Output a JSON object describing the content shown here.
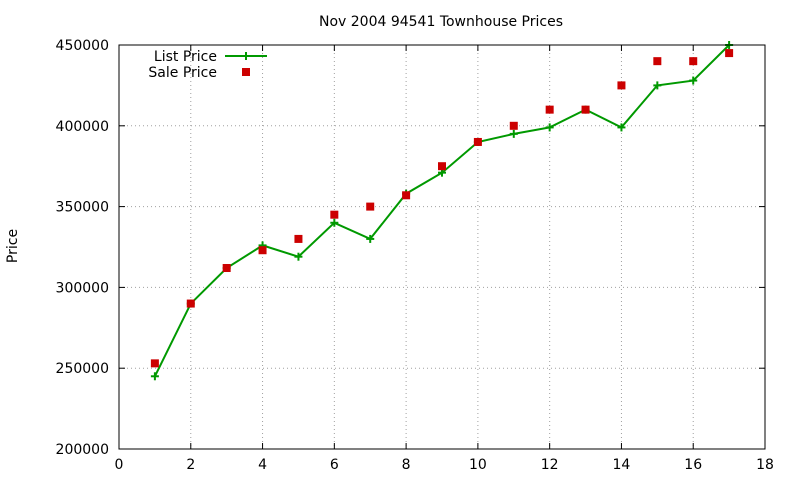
{
  "chart_data": {
    "type": "line",
    "title": "Nov 2004 94541 Townhouse Prices",
    "xlabel": "",
    "ylabel": "Price",
    "xlim": [
      0,
      18
    ],
    "ylim": [
      200000,
      450000
    ],
    "xticks": [
      0,
      2,
      4,
      6,
      8,
      10,
      12,
      14,
      16,
      18
    ],
    "yticks": [
      200000,
      250000,
      300000,
      350000,
      400000,
      450000
    ],
    "grid": true,
    "legend_position": "top-left",
    "series": [
      {
        "name": "List Price",
        "style": "lines+points",
        "marker": "plus",
        "color": "#009900",
        "points": [
          [
            1,
            245000
          ],
          [
            2,
            290000
          ],
          [
            3,
            312000
          ],
          [
            4,
            326000
          ],
          [
            5,
            319000
          ],
          [
            6,
            340000
          ],
          [
            7,
            330000
          ],
          [
            8,
            358000
          ],
          [
            9,
            371000
          ],
          [
            10,
            390000
          ],
          [
            11,
            395000
          ],
          [
            12,
            399000
          ],
          [
            13,
            410000
          ],
          [
            14,
            399000
          ],
          [
            15,
            425000
          ],
          [
            16,
            428000
          ],
          [
            17,
            450000
          ]
        ]
      },
      {
        "name": "Sale Price",
        "style": "points",
        "marker": "square",
        "color": "#cc0000",
        "points": [
          [
            1,
            253000
          ],
          [
            2,
            290000
          ],
          [
            3,
            312000
          ],
          [
            4,
            323000
          ],
          [
            5,
            330000
          ],
          [
            6,
            345000
          ],
          [
            7,
            350000
          ],
          [
            8,
            357000
          ],
          [
            9,
            375000
          ],
          [
            10,
            390000
          ],
          [
            11,
            400000
          ],
          [
            12,
            410000
          ],
          [
            13,
            410000
          ],
          [
            14,
            425000
          ],
          [
            15,
            440000
          ],
          [
            16,
            440000
          ],
          [
            17,
            445000
          ]
        ]
      }
    ]
  }
}
